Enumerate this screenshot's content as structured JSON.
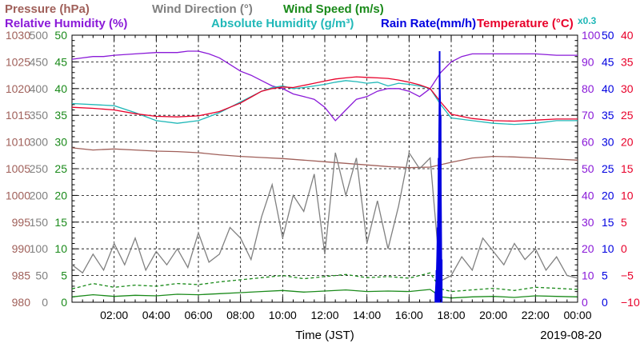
{
  "chart_data": {
    "type": "line",
    "date_label": "2019-08-20",
    "xlabel": "Time (JST)",
    "x_ticks": [
      "02:00",
      "04:00",
      "06:00",
      "08:00",
      "10:00",
      "12:00",
      "14:00",
      "16:00",
      "18:00",
      "20:00",
      "22:00",
      "00:00"
    ],
    "xlim_hours": [
      0,
      24
    ],
    "colors": {
      "pressure": "#a0605a",
      "wind_direction": "#808080",
      "wind_speed": "#1a8a1a",
      "relative_humidity": "#8a1ad8",
      "absolute_humidity": "#20b8b8",
      "rain_rate": "#0000e0",
      "temperature": "#e8002a"
    },
    "legend": {
      "row1": [
        {
          "key": "pressure",
          "label": "Pressure (hPa)"
        },
        {
          "key": "wind_direction",
          "label": "Wind Direction (°)"
        },
        {
          "key": "wind_speed",
          "label": "Wind Speed (m/s)"
        }
      ],
      "row2": [
        {
          "key": "relative_humidity",
          "label": "Relative Humidity (%)"
        },
        {
          "key": "absolute_humidity",
          "label": "Absolute Humidity (g/m³)"
        },
        {
          "key": "rain_rate",
          "label": "Rain Rate(mm/h)"
        },
        {
          "key": "temperature",
          "label": "Temperature (°C)"
        }
      ],
      "rain_scale_note": "x0.3"
    },
    "axes": {
      "pressure": {
        "ticks": [
          "1030",
          "1025",
          "1020",
          "1015",
          "1010",
          "1005",
          "1000",
          "995",
          "990",
          "985",
          "980"
        ],
        "ylim": [
          980,
          1030
        ]
      },
      "wind_direction": {
        "ticks": [
          "500",
          "450",
          "400",
          "350",
          "300",
          "250",
          "200",
          "150",
          "100",
          "50",
          "0"
        ],
        "ylim": [
          0,
          500
        ]
      },
      "wind_speed": {
        "ticks": [
          "50",
          "45",
          "40",
          "35",
          "30",
          "25",
          "20",
          "15",
          "10",
          "5",
          "0"
        ],
        "ylim": [
          0,
          50
        ]
      },
      "relative_humidity": {
        "ticks": [
          "100",
          "90",
          "80",
          "70",
          "60",
          "50",
          "40",
          "30",
          "20",
          "10",
          "0"
        ],
        "ylim": [
          0,
          100
        ]
      },
      "rain_rate": {
        "ticks": [
          "50",
          "45",
          "40",
          "35",
          "30",
          "25",
          "20",
          "15",
          "10",
          "5",
          "0"
        ],
        "ylim": [
          0,
          50
        ]
      },
      "temperature": {
        "ticks": [
          "40",
          "35",
          "30",
          "25",
          "20",
          "15",
          "10",
          "5",
          "0",
          "−5",
          "−10"
        ],
        "ylim": [
          -10,
          40
        ]
      }
    },
    "series": [
      {
        "key": "relative_humidity",
        "style": "solid",
        "x": [
          0,
          0.5,
          1,
          1.5,
          2,
          3,
          4,
          5,
          5.5,
          6,
          6.5,
          7,
          7.5,
          8,
          8.5,
          9,
          9.5,
          10,
          10.5,
          11,
          11.5,
          12,
          12.5,
          13,
          13.5,
          14,
          14.5,
          15,
          15.5,
          16,
          16.5,
          17,
          17.5,
          18,
          18.5,
          19,
          20,
          21,
          22,
          23,
          24
        ],
        "y": [
          91,
          91.5,
          92,
          92,
          92.5,
          93,
          93.5,
          93.5,
          94,
          94,
          93,
          91.5,
          89,
          86.5,
          85,
          83,
          81,
          80,
          78,
          77,
          76,
          73,
          68,
          72,
          76,
          77,
          79,
          80,
          80,
          79,
          77,
          80,
          86,
          90,
          92,
          93,
          93,
          93,
          93,
          92.5,
          92.5
        ]
      },
      {
        "key": "absolute_humidity",
        "style": "solid",
        "x": [
          0,
          1,
          2,
          3,
          4,
          5,
          6,
          7,
          8,
          8.5,
          9,
          9.5,
          10,
          10.5,
          11,
          11.5,
          12,
          12.5,
          13,
          13.5,
          14,
          14.5,
          15,
          15.5,
          16,
          16.5,
          17,
          17.5,
          18,
          19,
          20,
          21,
          22,
          23,
          24
        ],
        "y": [
          37.2,
          37,
          36.8,
          35.5,
          34,
          33.5,
          34,
          35.5,
          37.5,
          38.5,
          39.5,
          40.2,
          40.5,
          40,
          40.2,
          40.5,
          40.8,
          41.2,
          41.5,
          41.3,
          41,
          41.2,
          40.5,
          41,
          40.8,
          40.5,
          40,
          37,
          34.5,
          34,
          33.5,
          33.3,
          33.5,
          34,
          34
        ]
      },
      {
        "key": "temperature",
        "style": "solid",
        "x": [
          0,
          1,
          2,
          3,
          4,
          5,
          6,
          7,
          8,
          8.5,
          9,
          9.5,
          10,
          10.5,
          11,
          11.5,
          12,
          12.5,
          13,
          13.5,
          14,
          14.5,
          15,
          15.5,
          16,
          16.5,
          17,
          17.5,
          18,
          19,
          20,
          21,
          22,
          23,
          24
        ],
        "y": [
          26.5,
          26.3,
          26,
          25.3,
          24.8,
          24.7,
          24.9,
          25.7,
          27.3,
          28.4,
          29.5,
          30,
          30.3,
          30.2,
          30.6,
          31,
          31.4,
          31.8,
          32,
          32.2,
          32.1,
          32,
          31.9,
          31.6,
          31.2,
          30.7,
          30,
          27.5,
          25.2,
          24.4,
          24,
          23.9,
          24.1,
          24.3,
          24.3
        ]
      },
      {
        "key": "pressure",
        "style": "solid",
        "x": [
          0,
          1,
          2,
          3,
          4,
          5,
          6,
          7,
          8,
          9,
          10,
          11,
          12,
          13,
          14,
          15,
          16,
          17,
          18,
          19,
          20,
          21,
          22,
          23,
          24
        ],
        "y": [
          1008.9,
          1008.5,
          1008.7,
          1008.5,
          1008.3,
          1008.2,
          1008,
          1007.6,
          1007.3,
          1007.1,
          1006.9,
          1006.6,
          1006.3,
          1006,
          1005.7,
          1005.4,
          1005.2,
          1005.3,
          1006.2,
          1007,
          1007.3,
          1007.2,
          1007,
          1006.8,
          1006.6
        ]
      },
      {
        "key": "wind_direction",
        "style": "solid",
        "x": [
          0,
          0.5,
          1,
          1.5,
          2,
          2.5,
          3,
          3.5,
          4,
          4.5,
          5,
          5.5,
          6,
          6.5,
          7,
          7.5,
          8,
          8.5,
          9,
          9.5,
          10,
          10.5,
          11,
          11.5,
          12,
          12.5,
          13,
          13.5,
          14,
          14.5,
          15,
          15.5,
          16,
          16.5,
          17,
          17.5,
          18,
          18.5,
          19,
          19.5,
          20,
          20.5,
          21,
          21.5,
          22,
          22.5,
          23,
          23.5,
          24
        ],
        "y": [
          70,
          55,
          90,
          60,
          110,
          70,
          120,
          60,
          95,
          70,
          100,
          65,
          130,
          75,
          90,
          140,
          120,
          80,
          160,
          220,
          120,
          200,
          170,
          240,
          90,
          280,
          200,
          270,
          110,
          190,
          100,
          180,
          280,
          250,
          270,
          40,
          50,
          85,
          60,
          120,
          95,
          70,
          110,
          80,
          100,
          60,
          85,
          50,
          45
        ]
      },
      {
        "key": "wind_speed",
        "style": "dashed",
        "x": [
          0,
          1,
          2,
          3,
          4,
          5,
          6,
          7,
          8,
          9,
          10,
          11,
          12,
          13,
          14,
          15,
          16,
          17,
          17.5,
          18,
          19,
          20,
          21,
          22,
          23,
          24
        ],
        "y": [
          2.5,
          3.5,
          2.8,
          3.2,
          3,
          3.5,
          3.3,
          3.8,
          4.2,
          4.6,
          5,
          4.4,
          4.8,
          5.2,
          4.6,
          4.8,
          4.5,
          5.5,
          2.5,
          2,
          2.3,
          2.6,
          2.2,
          2.8,
          2.6,
          2.4
        ]
      },
      {
        "key": "wind_speed_mean",
        "color_key": "wind_speed",
        "style": "solid",
        "x": [
          0,
          1,
          2,
          3,
          4,
          5,
          6,
          7,
          8,
          9,
          10,
          11,
          12,
          13,
          14,
          15,
          16,
          17,
          17.5,
          18,
          19,
          20,
          21,
          22,
          23,
          24
        ],
        "y": [
          1,
          1.4,
          1.1,
          1.3,
          1.2,
          1.5,
          1.4,
          1.6,
          1.8,
          2,
          2.2,
          1.9,
          2.1,
          2.3,
          2,
          2.1,
          2,
          2.4,
          1,
          0.8,
          1,
          1.1,
          0.9,
          1.2,
          1.1,
          1
        ]
      },
      {
        "key": "rain_rate",
        "style": "bar",
        "x": [
          17.25,
          17.3,
          17.35,
          17.4,
          17.45,
          17.5,
          17.55
        ],
        "y": [
          2,
          6,
          14,
          27,
          47,
          35,
          8
        ]
      }
    ]
  }
}
